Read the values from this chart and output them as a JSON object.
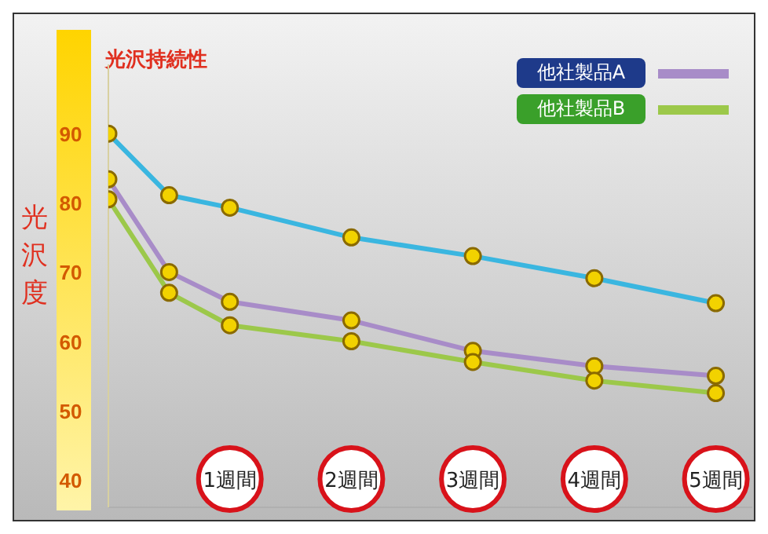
{
  "chart_data": {
    "type": "line",
    "title": "光沢持続性",
    "ylabel": "光沢度",
    "x": [
      0,
      0.5,
      1,
      2,
      3,
      4,
      5
    ],
    "series": [
      {
        "color": "#3ab6e0",
        "values": [
          90,
          81.1,
          79.3,
          75,
          72.3,
          69.1,
          65.5
        ]
      },
      {
        "name": "他社製品A",
        "color": "#a88cc8",
        "values": [
          83.4,
          70,
          65.7,
          63,
          58.6,
          56.4,
          55
        ]
      },
      {
        "name": "他社製品B",
        "color": "#9cc84a",
        "values": [
          80.5,
          67,
          62.3,
          60,
          57,
          54.3,
          52.5
        ]
      }
    ],
    "xlim": [
      0,
      5.3
    ],
    "xticks": [
      {
        "value": 1,
        "label": "1週間"
      },
      {
        "value": 2,
        "label": "2週間"
      },
      {
        "value": 3,
        "label": "3週間"
      },
      {
        "value": 4,
        "label": "4週間"
      },
      {
        "value": 5,
        "label": "5週間"
      }
    ],
    "ylim": [
      36,
      100
    ],
    "yticks": [
      40,
      50,
      60,
      70,
      80,
      90
    ],
    "grid": false,
    "legend": "top right",
    "marker": "circle",
    "line_style": "solid"
  }
}
